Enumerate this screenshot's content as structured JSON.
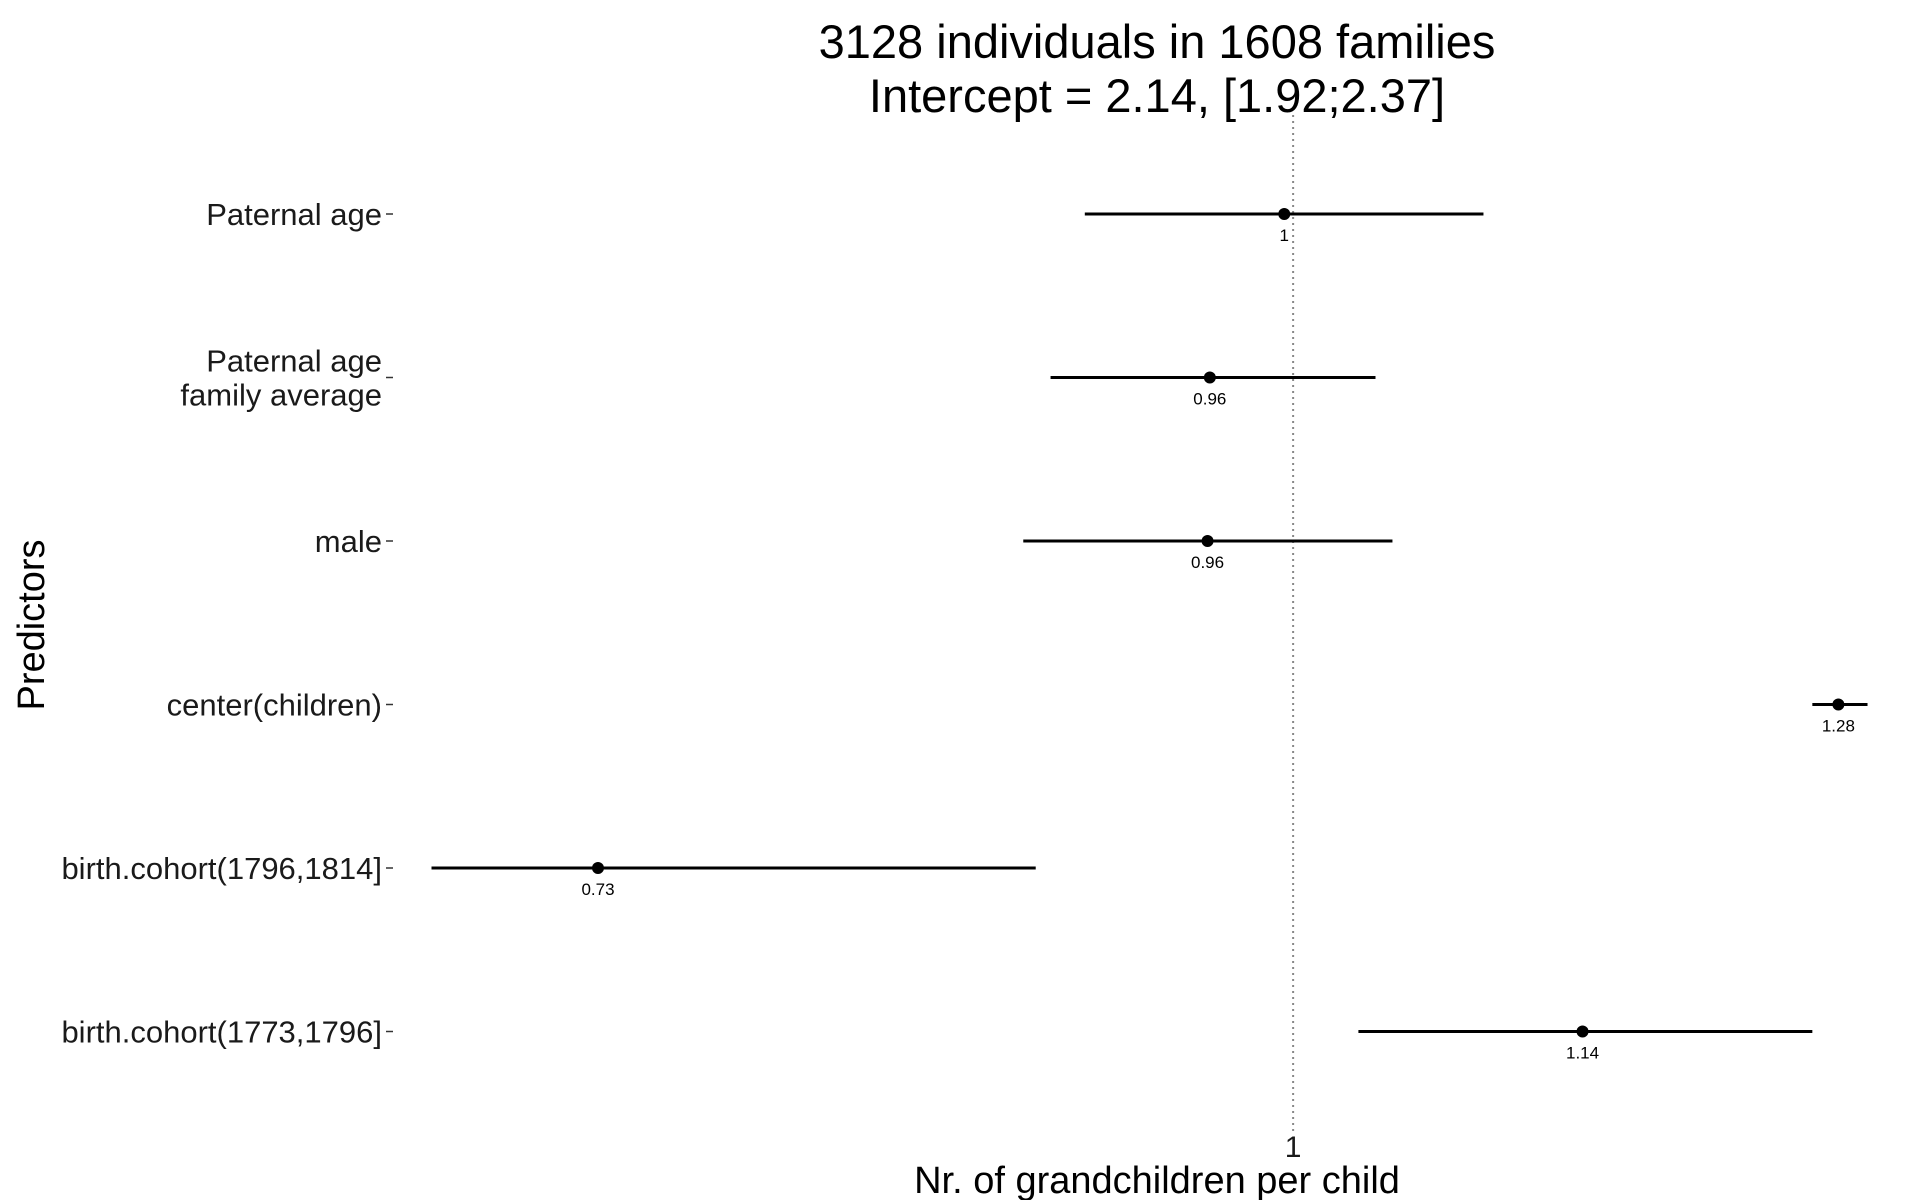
{
  "chart_data": {
    "type": "forest",
    "title": "3128 individuals in 1608 families",
    "subtitle": "Intercept = 2.14, [1.92;2.37]",
    "xlabel": "Nr. of grandchildren per child",
    "ylabel": "Predictors",
    "x_scale": "log",
    "xlim": [
      0.665,
      1.318
    ],
    "reference_line": 1,
    "x_ticks": [
      {
        "value": 1,
        "label": "1"
      }
    ],
    "grid": false,
    "legend": "none",
    "series": [
      {
        "points": [
          {
            "category": "Paternal age",
            "estimate": 0.996,
            "lower": 0.91,
            "upper": 1.09,
            "label": "1"
          },
          {
            "category": "Paternal age\nfamily average",
            "estimate": 0.963,
            "lower": 0.896,
            "upper": 1.038,
            "label": "0.96"
          },
          {
            "category": "male",
            "estimate": 0.962,
            "lower": 0.885,
            "upper": 1.046,
            "label": "0.96"
          },
          {
            "category": "center(children)",
            "estimate": 1.28,
            "lower": 1.265,
            "upper": 1.297,
            "label": "1.28"
          },
          {
            "category": "birth.cohort(1796,1814]",
            "estimate": 0.73,
            "lower": 0.677,
            "upper": 0.89,
            "label": "0.73"
          },
          {
            "category": "birth.cohort(1773,1796]",
            "estimate": 1.14,
            "lower": 1.03,
            "upper": 1.265,
            "label": "1.14"
          }
        ]
      }
    ],
    "colors": {
      "points": "#000000",
      "reference_line": "#888888",
      "text": "#1a1a1a"
    }
  }
}
